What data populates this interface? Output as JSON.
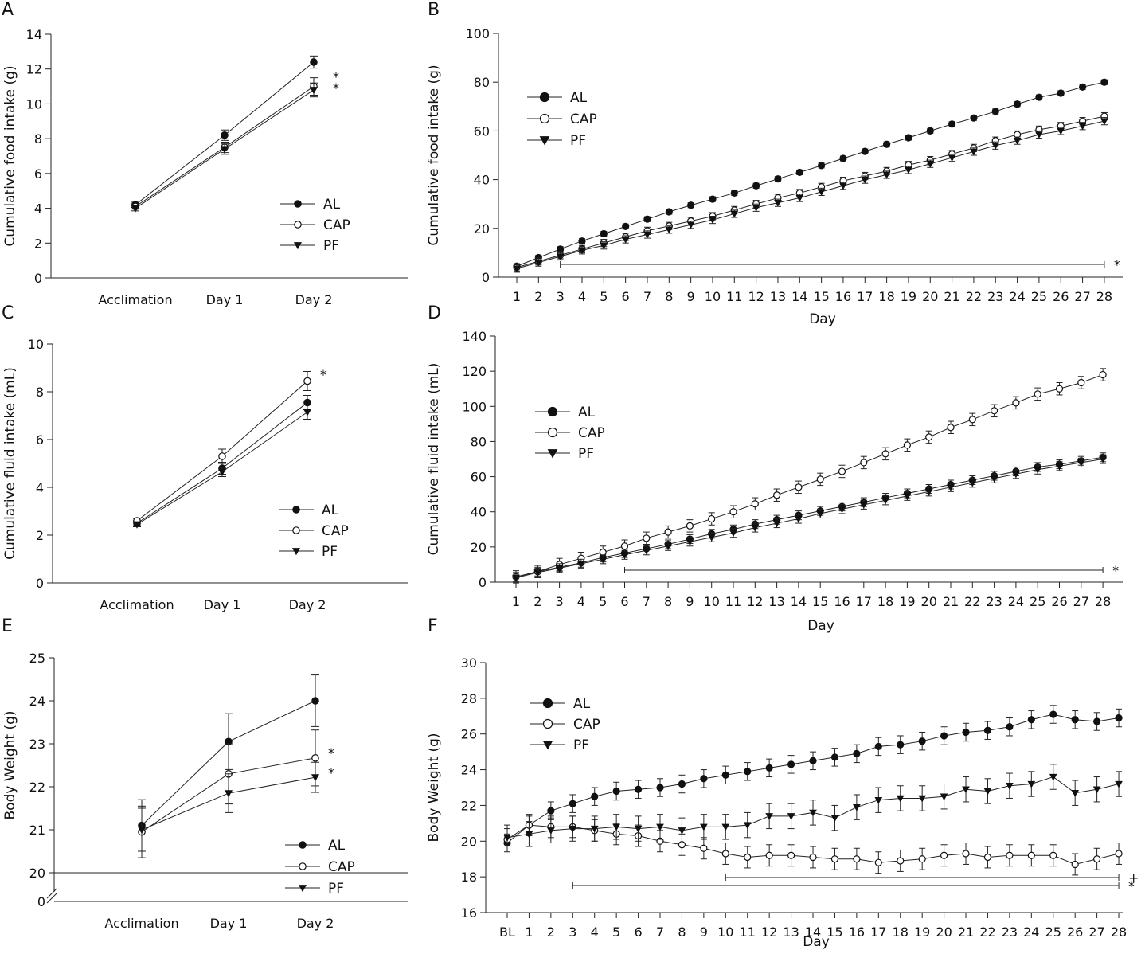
{
  "chart_data": [
    {
      "panel": "A",
      "type": "line",
      "ylabel": "Cumulative food intake (g)",
      "xlabel": "",
      "categories": [
        "Acclimation",
        "Day 1",
        "Day 2"
      ],
      "ylim": [
        0,
        14
      ],
      "yticks": [
        0,
        2,
        4,
        6,
        8,
        10,
        12,
        14
      ],
      "series": [
        {
          "name": "AL",
          "marker": "filled-circle",
          "values": [
            4.2,
            8.2,
            12.4
          ],
          "err": [
            0.15,
            0.3,
            0.35
          ]
        },
        {
          "name": "CAP",
          "marker": "open-circle",
          "values": [
            4.1,
            7.5,
            11.0
          ],
          "err": [
            0.15,
            0.3,
            0.5
          ]
        },
        {
          "name": "PF",
          "marker": "filled-triangle",
          "values": [
            4.0,
            7.4,
            10.8
          ],
          "err": [
            0.15,
            0.3,
            0.4
          ]
        }
      ],
      "annotations": [
        "*",
        "*"
      ]
    },
    {
      "panel": "B",
      "type": "line",
      "ylabel": "Cumulative food intake (g)",
      "xlabel": "Day",
      "categories": [
        "1",
        "2",
        "3",
        "4",
        "5",
        "6",
        "7",
        "8",
        "9",
        "10",
        "11",
        "12",
        "13",
        "14",
        "15",
        "16",
        "17",
        "18",
        "19",
        "20",
        "21",
        "22",
        "23",
        "24",
        "25",
        "26",
        "27",
        "28"
      ],
      "ylim": [
        0,
        100
      ],
      "yticks": [
        0,
        20,
        40,
        60,
        80,
        100
      ],
      "series": [
        {
          "name": "AL",
          "marker": "filled-circle",
          "values": [
            4.5,
            8,
            11.5,
            14.8,
            17.8,
            20.8,
            23.8,
            26.8,
            29.5,
            32,
            34.5,
            37.5,
            40.3,
            43,
            45.8,
            48.7,
            51.6,
            54.5,
            57.2,
            60,
            62.8,
            65.3,
            68,
            71,
            73.8,
            75.5,
            78,
            80
          ],
          "err": 1.0
        },
        {
          "name": "CAP",
          "marker": "open-circle",
          "values": [
            4,
            6.5,
            9,
            11.5,
            14,
            16.5,
            19,
            21,
            23,
            25,
            27.5,
            30,
            32.5,
            34.5,
            37,
            39.5,
            41.5,
            43.5,
            46,
            48,
            50.5,
            53,
            56,
            58.5,
            60.5,
            62,
            64,
            66
          ],
          "err": 1.5
        },
        {
          "name": "PF",
          "marker": "filled-triangle",
          "values": [
            3.5,
            6,
            8.5,
            11,
            13,
            15.5,
            17.5,
            19.5,
            21.5,
            23.5,
            26,
            28.5,
            30.5,
            32.5,
            35,
            37.5,
            40,
            42,
            44,
            46.5,
            49,
            51.5,
            54,
            56,
            58.5,
            60,
            62,
            64
          ],
          "err": 1.5
        }
      ],
      "significance": [
        {
          "from": "3",
          "to": "28",
          "label": "*"
        }
      ]
    },
    {
      "panel": "C",
      "type": "line",
      "ylabel": "Cumulative fluid intake (mL)",
      "xlabel": "",
      "categories": [
        "Acclimation",
        "Day 1",
        "Day 2"
      ],
      "ylim": [
        0,
        10
      ],
      "yticks": [
        0,
        2,
        4,
        6,
        8,
        10
      ],
      "series": [
        {
          "name": "AL",
          "marker": "filled-circle",
          "values": [
            2.5,
            4.8,
            7.55
          ],
          "err": [
            0.1,
            0.25,
            0.3
          ]
        },
        {
          "name": "CAP",
          "marker": "open-circle",
          "values": [
            2.6,
            5.3,
            8.45
          ],
          "err": [
            0.1,
            0.3,
            0.4
          ]
        },
        {
          "name": "PF",
          "marker": "filled-triangle",
          "values": [
            2.45,
            4.65,
            7.15
          ],
          "err": [
            0.1,
            0.2,
            0.3
          ]
        }
      ],
      "annotations": [
        "*"
      ]
    },
    {
      "panel": "D",
      "type": "line",
      "ylabel": "Cumulative fluid intake (mL)",
      "xlabel": "Day",
      "categories": [
        "1",
        "2",
        "3",
        "4",
        "5",
        "6",
        "7",
        "8",
        "9",
        "10",
        "11",
        "12",
        "13",
        "14",
        "15",
        "16",
        "17",
        "18",
        "19",
        "20",
        "21",
        "22",
        "23",
        "24",
        "25",
        "26",
        "27",
        "28"
      ],
      "ylim": [
        0,
        140
      ],
      "yticks": [
        0,
        20,
        40,
        60,
        80,
        100,
        120,
        140
      ],
      "series": [
        {
          "name": "AL",
          "marker": "filled-circle",
          "values": [
            3,
            6,
            8.5,
            11,
            14,
            16.5,
            19,
            21.5,
            24.5,
            27.5,
            30,
            33,
            35.5,
            38,
            40.5,
            43,
            45.5,
            48,
            50.5,
            53,
            55.5,
            58,
            60.5,
            63,
            65.5,
            67,
            69,
            71
          ],
          "err": 2.5
        },
        {
          "name": "CAP",
          "marker": "open-circle",
          "values": [
            3,
            6,
            10,
            13.5,
            17,
            20.5,
            25,
            28.5,
            32,
            36,
            40,
            44.5,
            49.5,
            54,
            58.5,
            63,
            68,
            73,
            78,
            82.5,
            88,
            92.5,
            97.5,
            102,
            107,
            110,
            113.5,
            118
          ],
          "err": 3.5
        },
        {
          "name": "PF",
          "marker": "filled-triangle",
          "values": [
            2.5,
            5.5,
            8,
            10.5,
            13,
            15.5,
            18,
            20.5,
            23,
            25.5,
            28,
            31,
            33.5,
            36,
            39,
            41.5,
            44,
            46.5,
            49,
            51.5,
            54,
            56.5,
            59,
            61.5,
            64,
            66,
            68,
            70
          ],
          "err": 2.5
        }
      ],
      "significance": [
        {
          "from": "6",
          "to": "28",
          "label": "*"
        }
      ]
    },
    {
      "panel": "E",
      "type": "line",
      "ylabel": "Body Weight (g)",
      "xlabel": "",
      "categories": [
        "Acclimation",
        "Day 1",
        "Day 2"
      ],
      "ylim": [
        20,
        25
      ],
      "yticks": [
        20,
        21,
        22,
        23,
        24,
        25
      ],
      "axis_break": true,
      "zero_label": "0",
      "series": [
        {
          "name": "AL",
          "marker": "filled-circle",
          "values": [
            21.1,
            23.05,
            24.0
          ],
          "err": [
            0.6,
            0.65,
            0.6
          ]
        },
        {
          "name": "CAP",
          "marker": "open-circle",
          "values": [
            20.95,
            22.3,
            22.67
          ],
          "err": [
            0.6,
            0.7,
            0.65
          ]
        },
        {
          "name": "PF",
          "marker": "filled-triangle",
          "values": [
            21.0,
            21.85,
            22.22
          ],
          "err": [
            0.5,
            0.45,
            0.35
          ]
        }
      ],
      "annotations": [
        "*",
        "*"
      ]
    },
    {
      "panel": "F",
      "type": "line",
      "ylabel": "Body Weight (g)",
      "xlabel": "Day",
      "categories": [
        "BL",
        "1",
        "2",
        "3",
        "4",
        "5",
        "6",
        "7",
        "8",
        "9",
        "10",
        "11",
        "12",
        "13",
        "14",
        "15",
        "16",
        "17",
        "18",
        "19",
        "20",
        "21",
        "22",
        "23",
        "24",
        "25",
        "26",
        "27",
        "28"
      ],
      "ylim": [
        16,
        30
      ],
      "yticks": [
        16,
        18,
        20,
        22,
        24,
        26,
        28,
        30
      ],
      "series": [
        {
          "name": "AL",
          "marker": "filled-circle",
          "values": [
            19.9,
            20.9,
            21.7,
            22.1,
            22.5,
            22.8,
            22.9,
            23.0,
            23.2,
            23.5,
            23.7,
            23.9,
            24.1,
            24.3,
            24.5,
            24.7,
            24.9,
            25.3,
            25.4,
            25.6,
            25.9,
            26.1,
            26.2,
            26.4,
            26.8,
            27.1,
            26.8,
            26.7,
            26.9
          ],
          "err": 0.5
        },
        {
          "name": "CAP",
          "marker": "open-circle",
          "values": [
            20.1,
            20.9,
            20.8,
            20.8,
            20.6,
            20.4,
            20.3,
            20.0,
            19.8,
            19.6,
            19.3,
            19.1,
            19.2,
            19.2,
            19.1,
            19.0,
            19.0,
            18.8,
            18.9,
            19.0,
            19.2,
            19.3,
            19.1,
            19.2,
            19.2,
            19.2,
            18.7,
            19.0,
            19.3
          ],
          "err": 0.6
        },
        {
          "name": "PF",
          "marker": "filled-triangle",
          "values": [
            20.2,
            20.4,
            20.6,
            20.7,
            20.7,
            20.8,
            20.7,
            20.8,
            20.6,
            20.8,
            20.8,
            20.9,
            21.4,
            21.4,
            21.6,
            21.3,
            21.9,
            22.3,
            22.4,
            22.4,
            22.5,
            22.9,
            22.8,
            23.1,
            23.2,
            23.6,
            22.7,
            22.9,
            23.2
          ],
          "err": 0.7
        }
      ],
      "significance": [
        {
          "from": "10",
          "to": "28",
          "label": "+"
        },
        {
          "from": "3",
          "to": "28",
          "label": "*"
        }
      ]
    }
  ]
}
